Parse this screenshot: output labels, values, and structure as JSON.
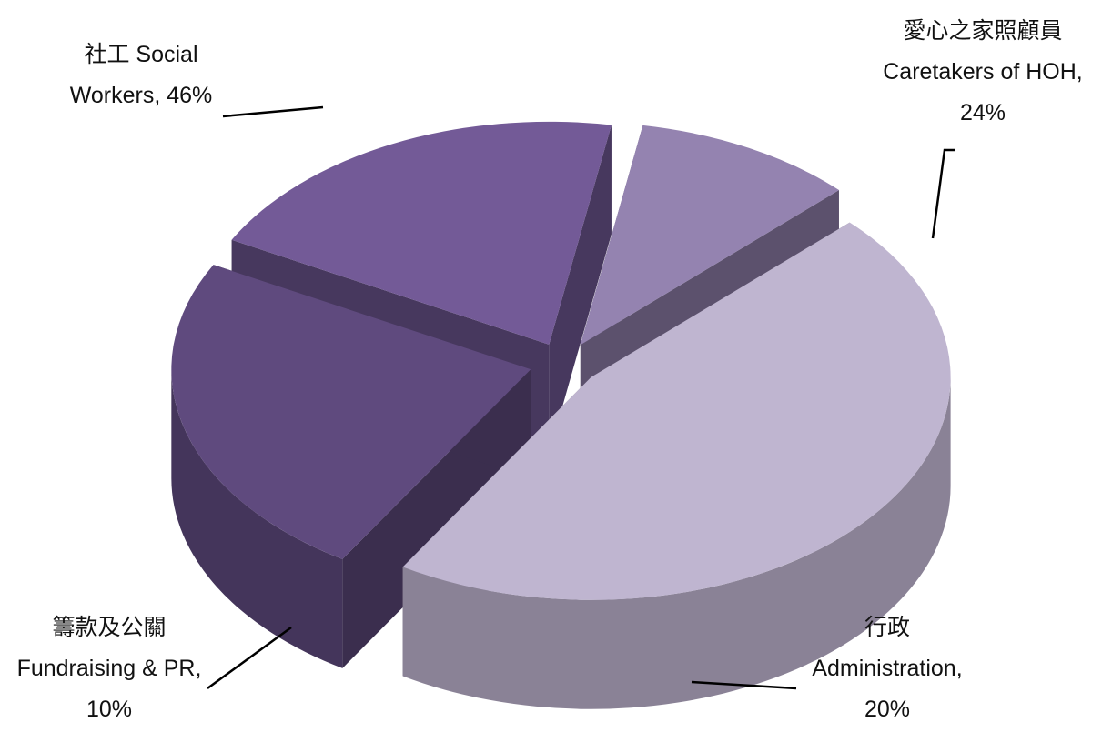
{
  "chart_data": {
    "type": "pie3d",
    "categories": [
      "社工 Social\nWorkers,",
      "愛心之家照顧員\nCaretakers of HOH,",
      "行政\nAdministration,",
      "籌款及公關\nFundraising & PR,"
    ],
    "values": [
      46,
      24,
      20,
      10
    ],
    "value_labels": [
      "46%",
      "24%",
      "20%",
      "10%"
    ],
    "colors": [
      "#bfb5d0",
      "#5f4a7e",
      "#735a97",
      "#9483b0"
    ]
  }
}
